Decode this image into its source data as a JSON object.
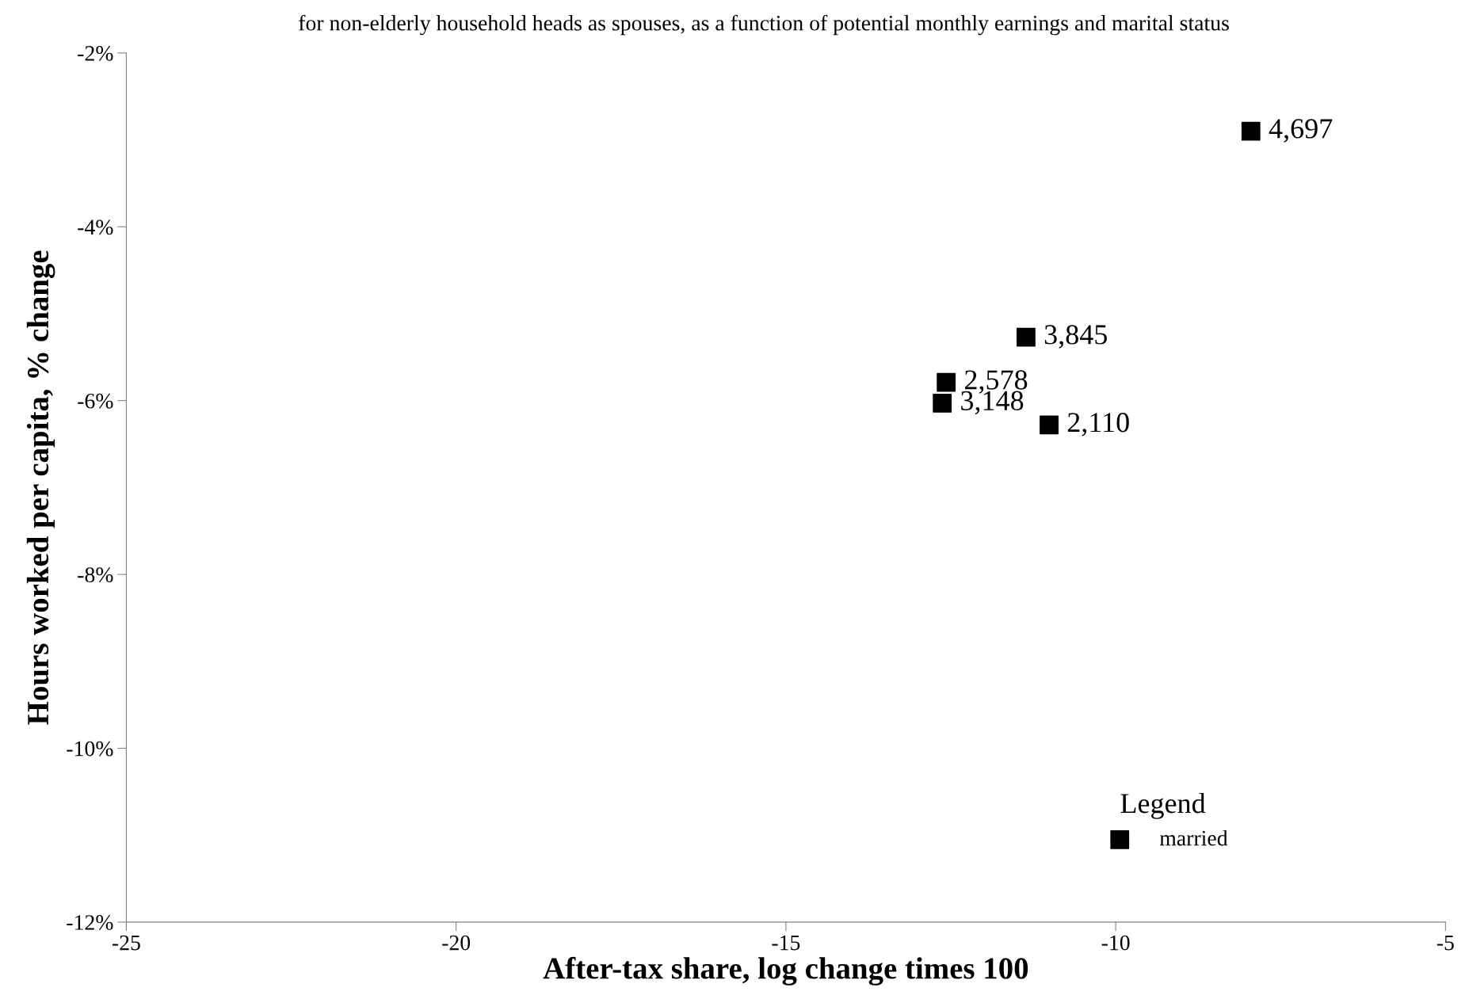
{
  "chart_data": {
    "type": "scatter",
    "subtitle": "for non-elderly household heads as spouses, as a function of potential monthly earnings and marital status",
    "xlabel": "After-tax share, log change times 100",
    "ylabel": "Hours worked per capita, % change",
    "x": [
      -7.95,
      -11.36,
      -12.57,
      -12.63,
      -11.01
    ],
    "series": [
      {
        "name": "married",
        "color": "#000000",
        "values": [
          -2.9,
          -5.27,
          -5.79,
          -6.03,
          -6.28
        ]
      }
    ],
    "annotations": [
      {
        "text": "4,697",
        "x": -7.95,
        "y": -2.9
      },
      {
        "text": "3,845",
        "x": -11.36,
        "y": -5.27
      },
      {
        "text": "2,578",
        "x": -12.57,
        "y": -5.79
      },
      {
        "text": "3,148",
        "x": -12.63,
        "y": -6.03
      },
      {
        "text": "2,110",
        "x": -11.01,
        "y": -6.28
      }
    ],
    "legend_title": "Legend",
    "legend": "bottom right",
    "marker": "square",
    "grid": false,
    "xlim": [
      -25,
      -5
    ],
    "xticks": [
      -25,
      -20,
      -15,
      -10,
      -5
    ],
    "ylim": [
      -12,
      -2
    ],
    "yticks": [
      {
        "value": -12,
        "label": "-12%"
      },
      {
        "value": -10,
        "label": "-10%"
      },
      {
        "value": -8,
        "label": "-8%"
      },
      {
        "value": -6,
        "label": "-6%"
      },
      {
        "value": -4,
        "label": "-4%"
      },
      {
        "value": -2,
        "label": "-2%"
      }
    ]
  }
}
